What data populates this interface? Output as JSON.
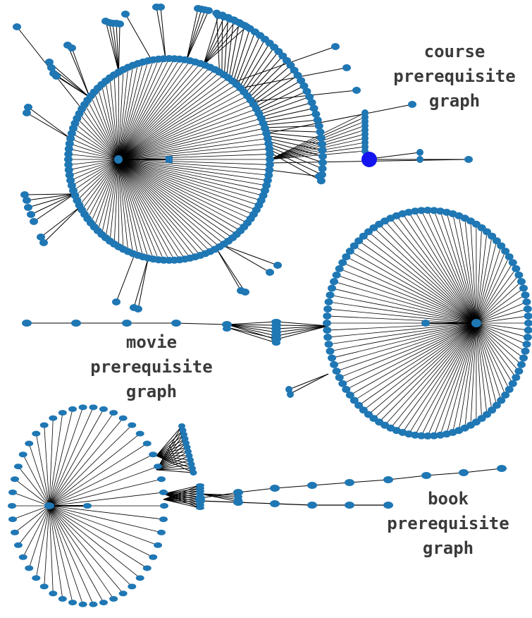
{
  "colors": {
    "node": "#1f77b4",
    "highlight_node": "#1414f0",
    "edge": "#000000",
    "label_text": "#3a3a3a",
    "background": "#ffffff"
  },
  "graphs": [
    {
      "id": "course",
      "label_lines": [
        "course",
        "prerequisite",
        "graph"
      ]
    },
    {
      "id": "movie",
      "label_lines": [
        "movie",
        "prerequisite",
        "graph"
      ]
    },
    {
      "id": "book",
      "label_lines": [
        "book",
        "prerequisite",
        "graph"
      ]
    }
  ]
}
